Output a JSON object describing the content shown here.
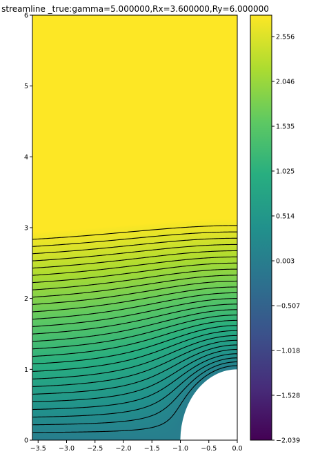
{
  "chart_data": {
    "type": "contour",
    "title": "streamline _true:gamma=5.000000,Rx=3.600000,Ry=6.000000",
    "xlabel": "",
    "ylabel": "",
    "xlim": [
      -3.6,
      0.0
    ],
    "ylim": [
      0,
      6
    ],
    "x_ticks": [
      -3.5,
      -3.0,
      -2.5,
      -2.0,
      -1.5,
      -1.0,
      -0.5,
      0.0
    ],
    "x_tick_labels": [
      "−3.5",
      "−3.0",
      "−2.5",
      "−2.0",
      "−1.5",
      "−1.0",
      "−0.5",
      "0.0"
    ],
    "y_ticks": [
      0,
      1,
      2,
      3,
      4,
      5,
      6
    ],
    "y_tick_labels": [
      "0",
      "1",
      "2",
      "3",
      "4",
      "5",
      "6"
    ],
    "obstacle": {
      "shape": "semicircle",
      "center": [
        0,
        0
      ],
      "radius": 1.0
    },
    "colorbar": {
      "colormap": "viridis",
      "range": [
        -2.039,
        2.8
      ],
      "ticks": [
        -2.039,
        -1.528,
        -1.018,
        -0.507,
        0.003,
        0.514,
        1.025,
        1.535,
        2.046,
        2.556
      ],
      "tick_labels": [
        "−2.039",
        "−1.528",
        "−1.018",
        "−0.507",
        "0.003",
        "0.514",
        "1.025",
        "1.535",
        "2.046",
        "2.556"
      ]
    },
    "contour_lines": {
      "color": "#000000",
      "positive_style": "solid",
      "negative_style": "dashed",
      "level_spacing": 0.1
    },
    "grid": false
  }
}
